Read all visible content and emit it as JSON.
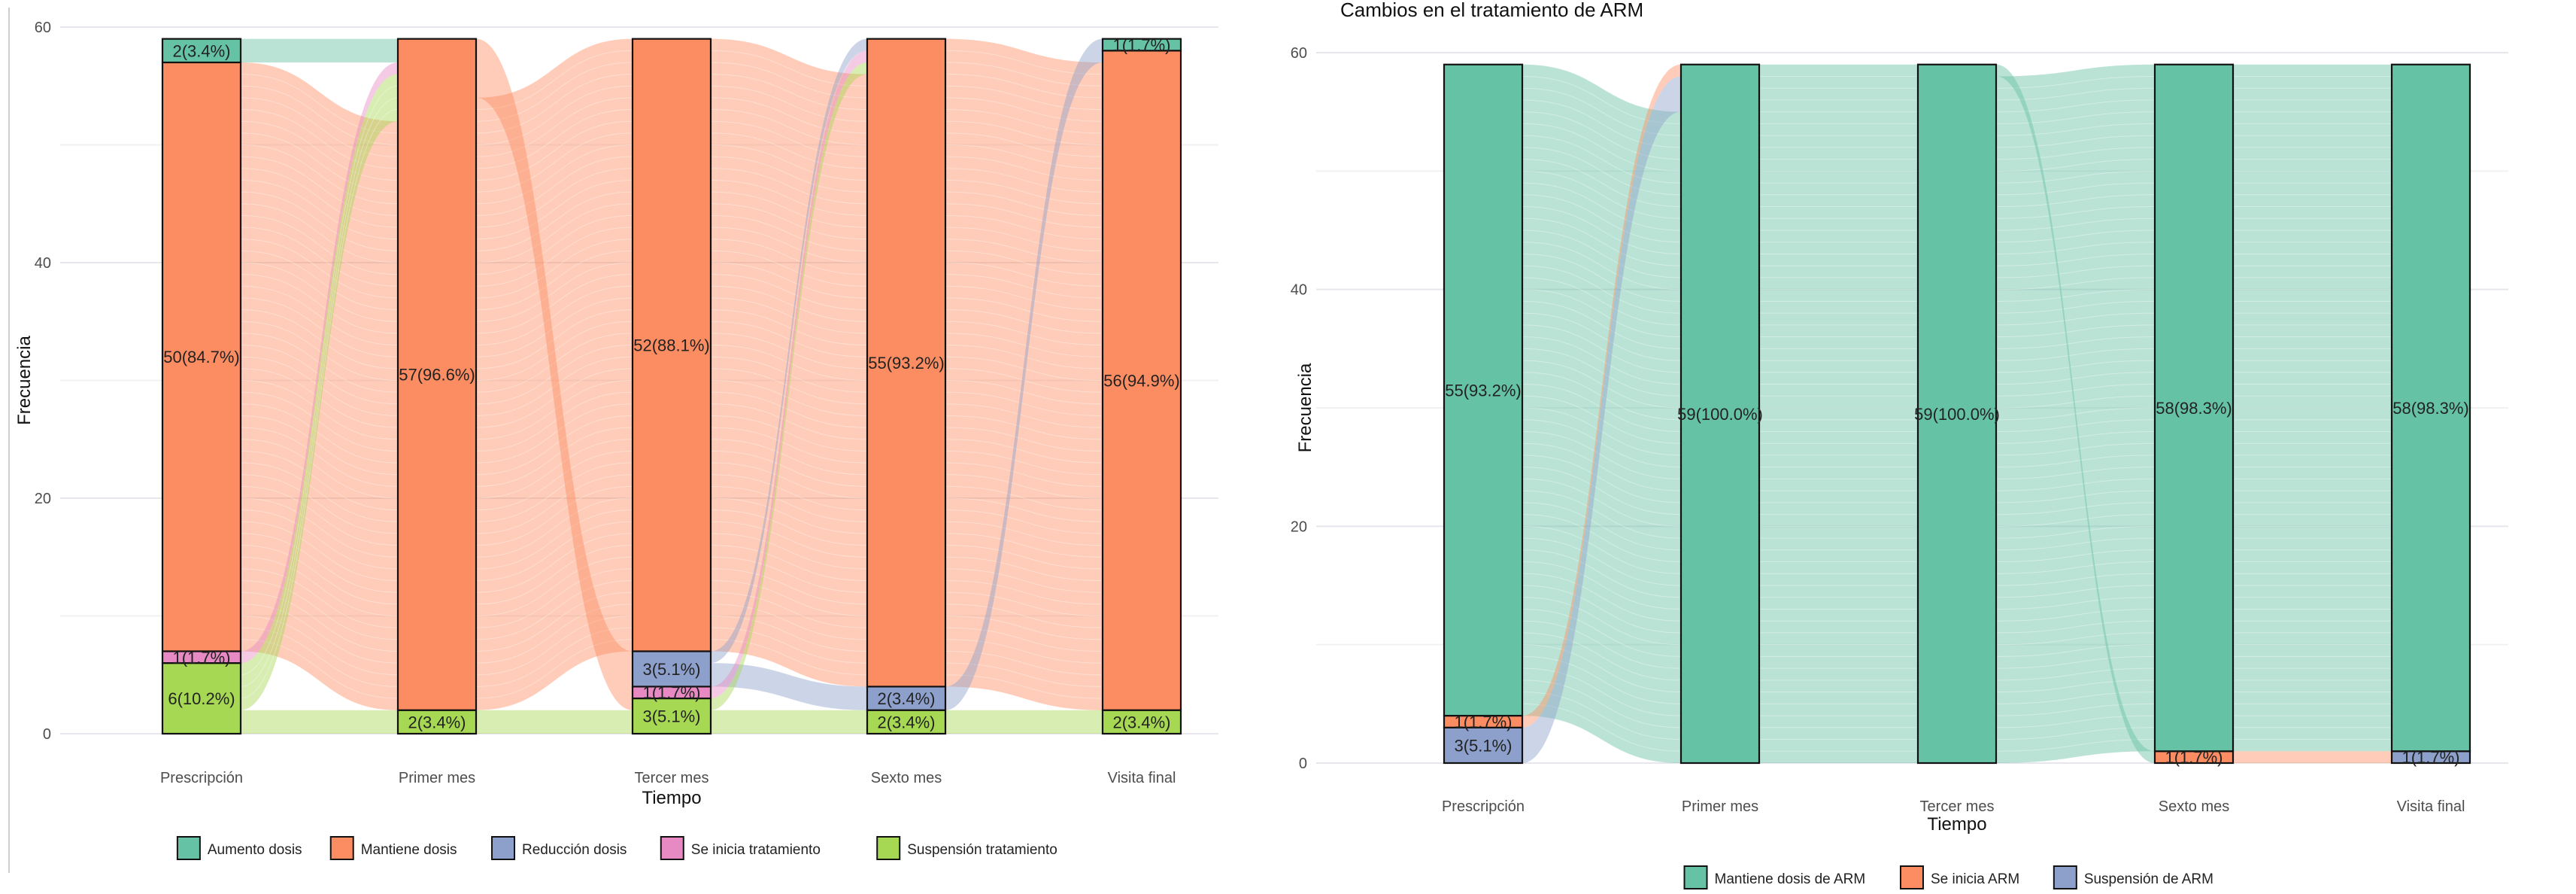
{
  "chart_data": [
    {
      "type": "alluvial",
      "title": "",
      "xlabel": "Tiempo",
      "ylabel": "Frecuencia",
      "ylim": [
        0,
        60
      ],
      "yticks": [
        "0",
        "20",
        "40",
        "60"
      ],
      "categories": [
        "Prescripción",
        "Primer mes",
        "Tercer mes",
        "Sexto mes",
        "Visita final"
      ],
      "legend_position": "bottom",
      "legend": [
        {
          "key": "aumento",
          "label": "Aumento dosis",
          "color": "#66c2a5"
        },
        {
          "key": "mantiene",
          "label": "Mantiene dosis",
          "color": "#fc8d62"
        },
        {
          "key": "reduccion",
          "label": "Reducción dosis",
          "color": "#8da0cb"
        },
        {
          "key": "inicia",
          "label": "Se inicia tratamiento",
          "color": "#e78ac3"
        },
        {
          "key": "suspension",
          "label": "Suspensión tratamiento",
          "color": "#a6d854"
        }
      ],
      "stacks": [
        [
          {
            "key": "suspension",
            "value": 6,
            "label": "6(10.2%)"
          },
          {
            "key": "inicia",
            "value": 1,
            "label": "1(1.7%)"
          },
          {
            "key": "mantiene",
            "value": 50,
            "label": "50(84.7%)"
          },
          {
            "key": "aumento",
            "value": 2,
            "label": "2(3.4%)"
          }
        ],
        [
          {
            "key": "suspension",
            "value": 2,
            "label": "2(3.4%)"
          },
          {
            "key": "mantiene",
            "value": 57,
            "label": "57(96.6%)"
          }
        ],
        [
          {
            "key": "suspension",
            "value": 3,
            "label": "3(5.1%)"
          },
          {
            "key": "inicia",
            "value": 1,
            "label": "1(1.7%)"
          },
          {
            "key": "reduccion",
            "value": 3,
            "label": "3(5.1%)"
          },
          {
            "key": "mantiene",
            "value": 52,
            "label": "52(88.1%)"
          }
        ],
        [
          {
            "key": "suspension",
            "value": 2,
            "label": "2(3.4%)"
          },
          {
            "key": "reduccion",
            "value": 2,
            "label": "2(3.4%)"
          },
          {
            "key": "mantiene",
            "value": 55,
            "label": "55(93.2%)"
          }
        ],
        [
          {
            "key": "suspension",
            "value": 2,
            "label": "2(3.4%)"
          },
          {
            "key": "mantiene",
            "value": 56,
            "label": "56(94.9%)"
          },
          {
            "key": "aumento",
            "value": 1,
            "label": "1(1.7%)"
          }
        ]
      ]
    },
    {
      "type": "alluvial",
      "title": "Cambios en el tratamiento de ARM",
      "xlabel": "Tiempo",
      "ylabel": "Frecuencia",
      "ylim": [
        0,
        60
      ],
      "yticks": [
        "0",
        "20",
        "40",
        "60"
      ],
      "categories": [
        "Prescripción",
        "Primer mes",
        "Tercer mes",
        "Sexto mes",
        "Visita final"
      ],
      "legend_position": "bottom",
      "legend": [
        {
          "key": "mantiene",
          "label": "Mantiene dosis de ARM",
          "color": "#66c2a5"
        },
        {
          "key": "inicia",
          "label": "Se inicia ARM",
          "color": "#fc8d62"
        },
        {
          "key": "suspension",
          "label": "Suspensión de ARM",
          "color": "#8da0cb"
        }
      ],
      "stacks": [
        [
          {
            "key": "suspension",
            "value": 3,
            "label": "3(5.1%)"
          },
          {
            "key": "inicia",
            "value": 1,
            "label": "1(1.7%)"
          },
          {
            "key": "mantiene",
            "value": 55,
            "label": "55(93.2%)"
          }
        ],
        [
          {
            "key": "mantiene",
            "value": 59,
            "label": "59(100.0%)"
          }
        ],
        [
          {
            "key": "mantiene",
            "value": 59,
            "label": "59(100.0%)"
          }
        ],
        [
          {
            "key": "inicia",
            "value": 1,
            "label": "1(1.7%)"
          },
          {
            "key": "mantiene",
            "value": 58,
            "label": "58(98.3%)"
          }
        ],
        [
          {
            "key": "suspension",
            "value": 1,
            "label": "1(1.7%)"
          },
          {
            "key": "mantiene",
            "value": 58,
            "label": "58(98.3%)"
          }
        ]
      ]
    }
  ]
}
